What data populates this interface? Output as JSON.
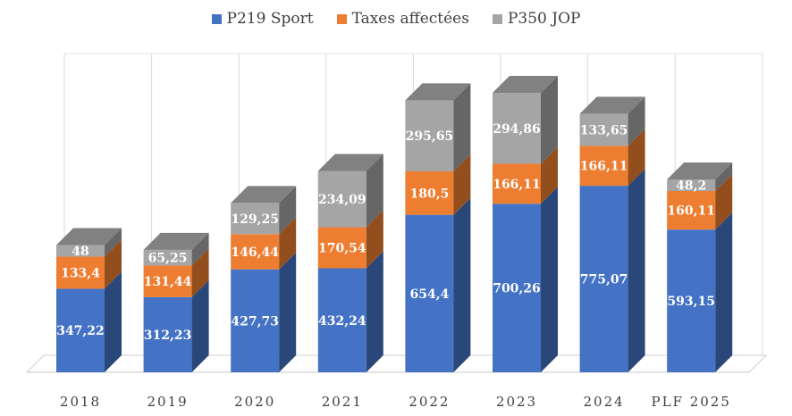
{
  "chart_data": {
    "type": "bar",
    "stacked": true,
    "three_d": true,
    "categories": [
      "2018",
      "2019",
      "2020",
      "2021",
      "2022",
      "2023",
      "2024",
      "PLF 2025"
    ],
    "series": [
      {
        "name": "P219 Sport",
        "color": "#4472C4",
        "values": [
          347.22,
          312.23,
          427.73,
          432.24,
          654.4,
          700.26,
          775.07,
          593.15
        ],
        "labels": [
          "347,22",
          "312,23",
          "427,73",
          "432,24",
          "654,4",
          "700,26",
          "775,07",
          "593,15"
        ]
      },
      {
        "name": "Taxes affectées",
        "color": "#ED7D31",
        "values": [
          133.4,
          131.44,
          146.44,
          170.54,
          180.5,
          166.11,
          166.11,
          160.11
        ],
        "labels": [
          "133,4",
          "131,44",
          "146,44",
          "170,54",
          "180,5",
          "166,11",
          "166,11",
          "160,11"
        ]
      },
      {
        "name": "P350 JOP",
        "color": "#A5A5A5",
        "values": [
          48,
          65.25,
          129.25,
          234.09,
          295.65,
          294.86,
          133.65,
          48.2
        ],
        "labels": [
          "48",
          "65,25",
          "129,25",
          "234,09",
          "295,65",
          "294,86",
          "133,65",
          "48,2"
        ]
      }
    ],
    "legend_position": "top",
    "grid": true,
    "ylim": [
      0,
      1200
    ]
  }
}
